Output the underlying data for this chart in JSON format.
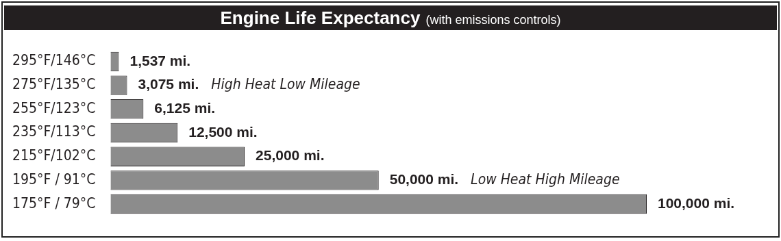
{
  "chart_data": {
    "type": "bar",
    "orientation": "horizontal",
    "title": "Engine Life Expectancy",
    "subtitle": "(with emissions controls)",
    "categories": [
      "295°F/146°C",
      "275°F/135°C",
      "255°F/123°C",
      "235°F/113°C",
      "215°F/102°C",
      "195°F / 91°C",
      "175°F / 79°C"
    ],
    "values": [
      1537,
      3075,
      6125,
      12500,
      25000,
      50000,
      100000
    ],
    "value_labels": [
      "1,537 mi.",
      "3,075 mi.",
      "6,125 mi.",
      "12,500 mi.",
      "25,000 mi.",
      "50,000 mi.",
      "100,000 mi."
    ],
    "color": "#8c8c8c",
    "tick_labels": "y",
    "grid": false,
    "legend": false,
    "annotations": [
      "High Heat Low Mileage",
      "Low Heat High Mileage"
    ]
  }
}
